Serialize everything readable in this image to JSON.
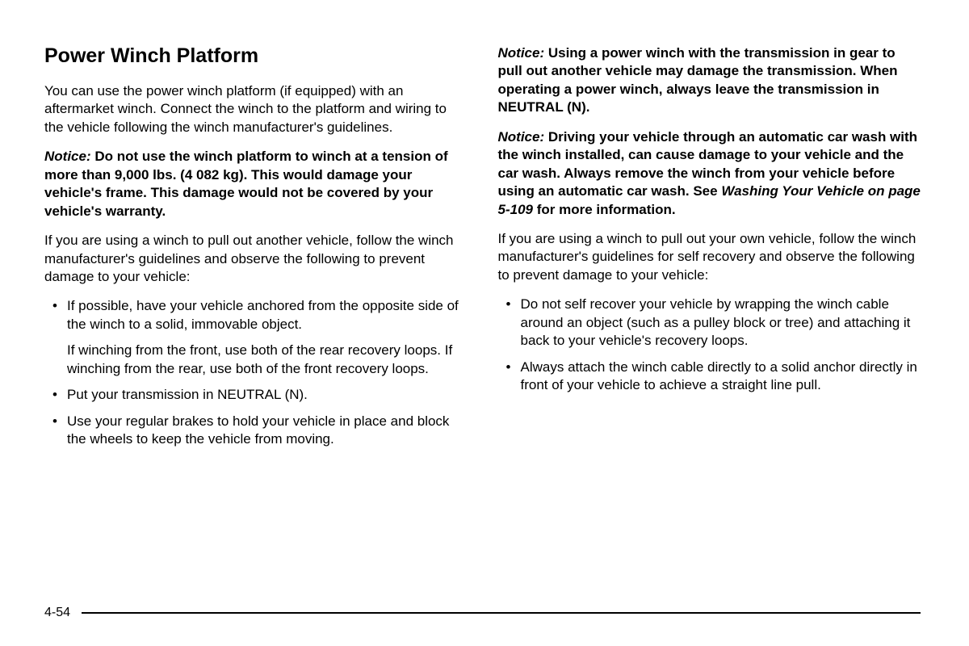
{
  "heading": "Power Winch Platform",
  "left": {
    "intro": "You can use the power winch platform (if equipped) with an aftermarket winch. Connect the winch to the platform and wiring to the vehicle following the winch manufacturer's guidelines.",
    "notice1_label": "Notice:",
    "notice1_body": " Do not use the winch platform to winch at a tension of more than 9,000 lbs. (4 082 kg). This would damage your vehicle's frame. This damage would not be covered by your vehicle's warranty.",
    "para2": "If you are using a winch to pull out another vehicle, follow the winch manufacturer's guidelines and observe the following to prevent damage to your vehicle:",
    "bullets": [
      {
        "main": "If possible, have your vehicle anchored from the opposite side of the winch to a solid, immovable object.",
        "sub": "If winching from the front, use both of the rear recovery loops. If winching from the rear, use both of the front recovery loops."
      },
      {
        "main": "Put your transmission in NEUTRAL (N)."
      },
      {
        "main": "Use your regular brakes to hold your vehicle in place and block the wheels to keep the vehicle from moving."
      }
    ]
  },
  "right": {
    "notice2_label": "Notice:",
    "notice2_body": " Using a power winch with the transmission in gear to pull out another vehicle may damage the transmission. When operating a power winch, always leave the transmission in NEUTRAL (N).",
    "notice3_label": "Notice:",
    "notice3_body_a": " Driving your vehicle through an automatic car wash with the winch installed, can cause damage to your vehicle and the car wash. Always remove the winch from your vehicle before using an automatic car wash. See ",
    "notice3_ref": "Washing Your Vehicle on page 5-109",
    "notice3_body_b": " for more information.",
    "para3": "If you are using a winch to pull out your own vehicle, follow the winch manufacturer's guidelines for self recovery and observe the following to prevent damage to your vehicle:",
    "bullets": [
      {
        "main": "Do not self recover your vehicle by wrapping the winch cable around an object (such as a pulley block or tree) and attaching it back to your vehicle's recovery loops."
      },
      {
        "main": "Always attach the winch cable directly to a solid anchor directly in front of your vehicle to achieve a straight line pull."
      }
    ]
  },
  "page_number": "4-54"
}
